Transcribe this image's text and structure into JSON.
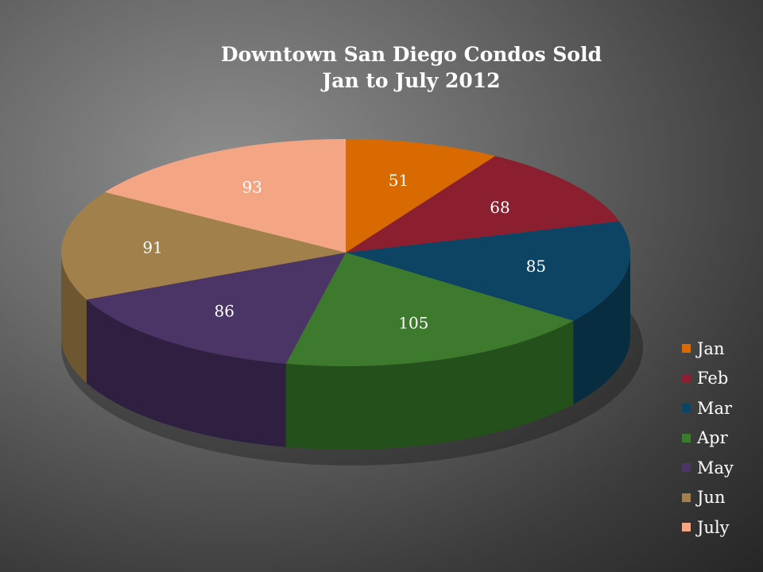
{
  "chart_data": {
    "type": "pie",
    "title": "Downtown San Diego Condos Sold",
    "subtitle": "Jan to July 2012",
    "categories": [
      "Jan",
      "Feb",
      "Mar",
      "Apr",
      "May",
      "Jun",
      "July"
    ],
    "values": [
      51,
      68,
      85,
      105,
      86,
      91,
      93
    ],
    "colors": [
      "#d96a02",
      "#8b1f2f",
      "#0e4463",
      "#3d7a2e",
      "#4b3466",
      "#a1804b",
      "#f4a584"
    ],
    "side_colors": [
      "#8a4300",
      "#5a1420",
      "#082c40",
      "#24501b",
      "#2f2042",
      "#6e5631",
      "#b57a5d"
    ],
    "data_labels": true,
    "legend_position": "right"
  }
}
